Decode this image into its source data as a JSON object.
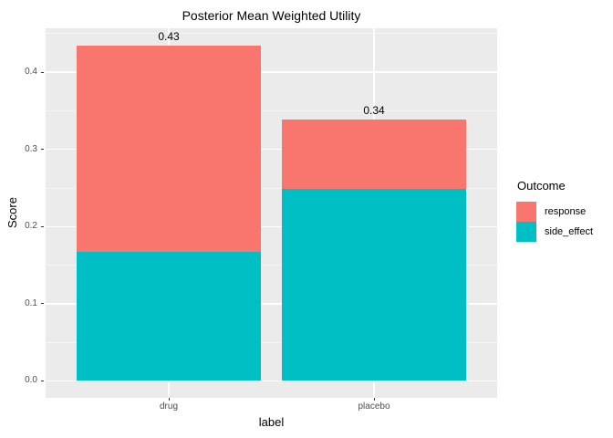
{
  "chart_data": {
    "type": "bar",
    "stacked": true,
    "title": "Posterior Mean Weighted Utility",
    "xlabel": "label",
    "ylabel": "Score",
    "legend_title": "Outcome",
    "legend_position": "right",
    "grid": true,
    "categories": [
      "drug",
      "placebo"
    ],
    "series": [
      {
        "name": "response",
        "color": "#F8766D",
        "values": [
          0.267,
          0.09
        ]
      },
      {
        "name": "side_effect",
        "color": "#00BFC4",
        "values": [
          0.167,
          0.249
        ]
      }
    ],
    "stack_order_bottom_to_top": [
      "side_effect",
      "response"
    ],
    "totals_labels": [
      "0.43",
      "0.34"
    ],
    "y_ticks": [
      0.0,
      0.1,
      0.2,
      0.3,
      0.4
    ],
    "y_minor_ticks": [
      0.05,
      0.15,
      0.25,
      0.35,
      0.45
    ],
    "y_range": [
      -0.0219,
      0.4569
    ],
    "panel_bg": "#EBEBEB",
    "grid_color": "#FFFFFF",
    "tick_label_color": "#4D4D4D"
  }
}
